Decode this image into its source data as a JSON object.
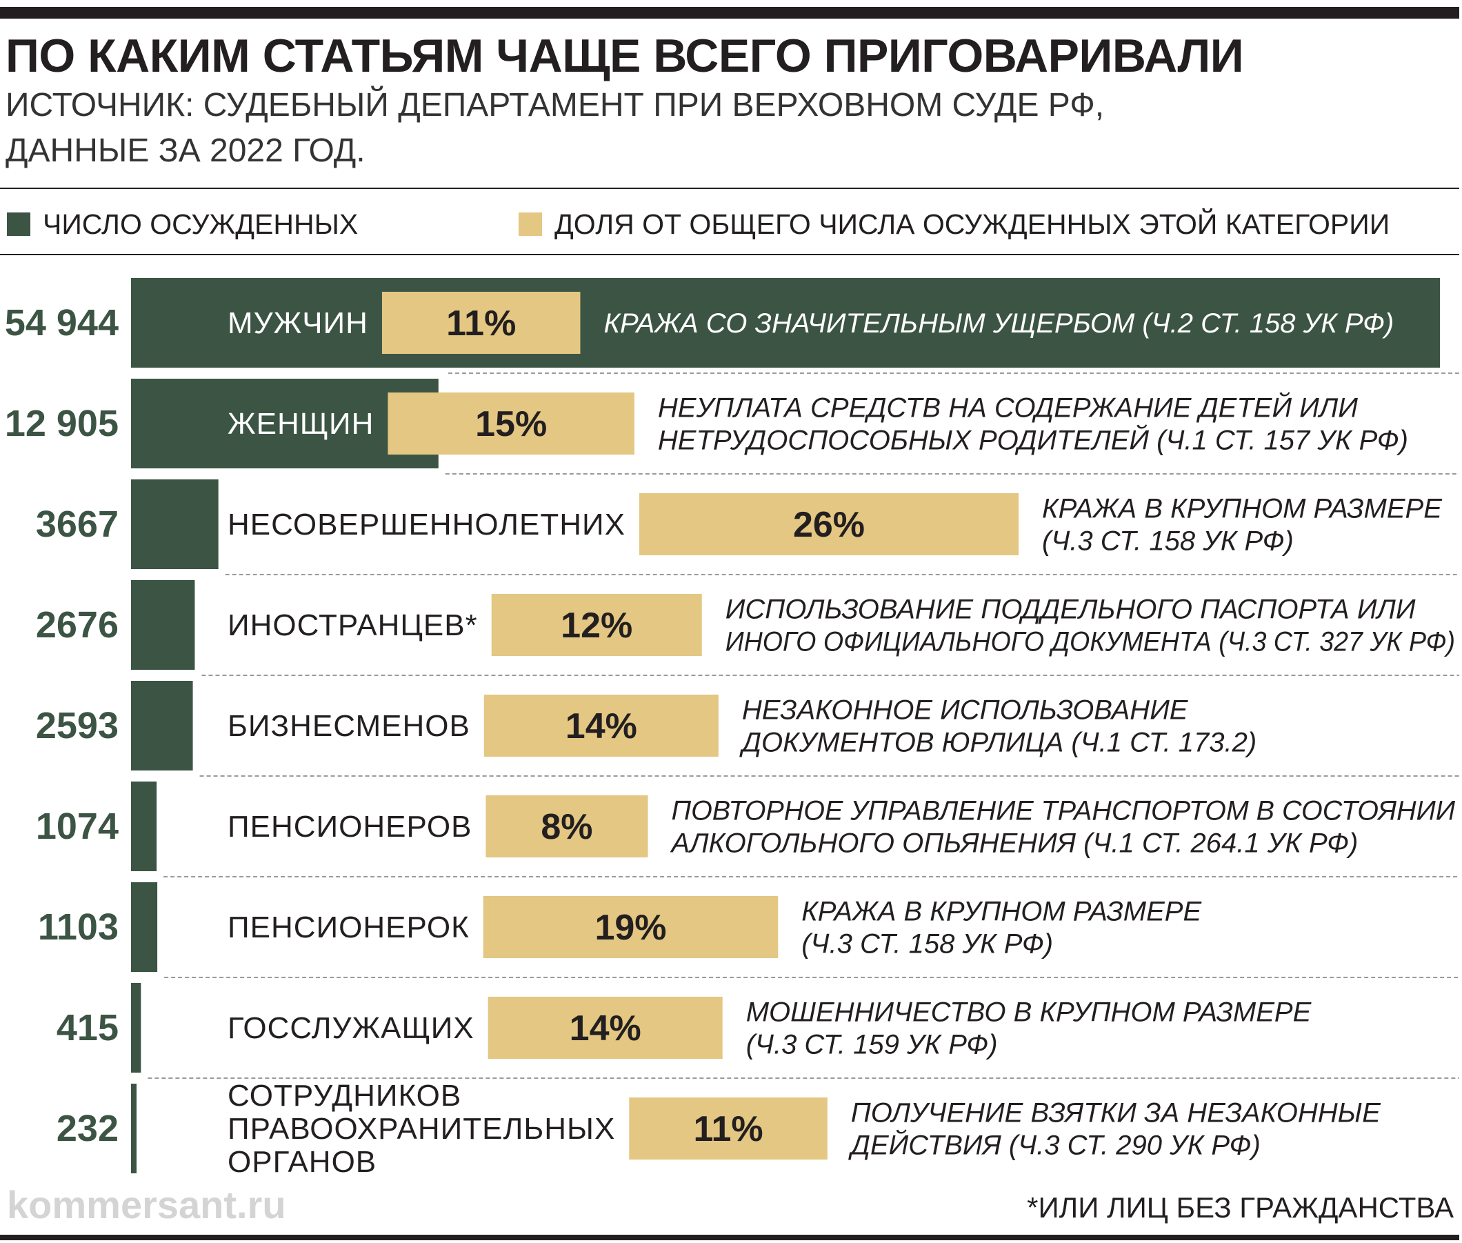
{
  "header": {
    "title": "ПО КАКИМ СТАТЬЯМ ЧАЩЕ ВСЕГО ПРИГОВАРИВАЛИ",
    "subtitle_line1": "ИСТОЧНИК: СУДЕБНЫЙ ДЕПАРТАМЕНТ ПРИ ВЕРХОВНОМ СУДЕ РФ,",
    "subtitle_line2": "ДАННЫЕ ЗА 2022 ГОД."
  },
  "legend": {
    "count_label": "ЧИСЛО ОСУЖДЕННЫХ",
    "share_label": "ДОЛЯ ОТ ОБЩЕГО ЧИСЛА ОСУЖДЕННЫХ ЭТОЙ КАТЕГОРИИ"
  },
  "colors": {
    "count_bar": "#3c5444",
    "share_bar": "#e3c782",
    "text": "#231f20",
    "count_label": "#3c5444"
  },
  "chart_data": {
    "type": "bar",
    "orientation": "horizontal",
    "legend_position": "top",
    "grid": false,
    "series": [
      {
        "name": "ЧИСЛО ОСУЖДЕННЫХ",
        "unit": "persons"
      },
      {
        "name": "ДОЛЯ ОТ ОБЩЕГО ЧИСЛА ОСУЖДЕННЫХ ЭТОЙ КАТЕГОРИИ",
        "unit": "%"
      }
    ],
    "max_count": 54944,
    "rows": [
      {
        "count": 54944,
        "count_label": "54 944",
        "category_lines": [
          "МУЖЧИН"
        ],
        "share": 11,
        "share_label": "11%",
        "article_lines": [
          "КРАЖА СО ЗНАЧИТЕЛЬНЫМ УЩЕРБОМ (Ч.2 СТ. 158 УК РФ)"
        ]
      },
      {
        "count": 12905,
        "count_label": "12 905",
        "category_lines": [
          "ЖЕНЩИН"
        ],
        "share": 15,
        "share_label": "15%",
        "article_lines": [
          "НЕУПЛАТА СРЕДСТВ НА СОДЕРЖАНИЕ ДЕТЕЙ ИЛИ",
          "НЕТРУДОСПОСОБНЫХ РОДИТЕЛЕЙ (Ч.1 СТ. 157 УК РФ)"
        ]
      },
      {
        "count": 3667,
        "count_label": "3667",
        "category_lines": [
          "НЕСОВЕРШЕННОЛЕТНИХ"
        ],
        "share": 26,
        "share_label": "26%",
        "article_lines": [
          "КРАЖА В КРУПНОМ РАЗМЕРЕ",
          "(Ч.3 СТ. 158 УК РФ)"
        ]
      },
      {
        "count": 2676,
        "count_label": "2676",
        "category_lines": [
          "ИНОСТРАНЦЕВ*"
        ],
        "share": 12,
        "share_label": "12%",
        "article_lines": [
          "ИСПОЛЬЗОВАНИЕ ПОДДЕЛЬНОГО ПАСПОРТА ИЛИ",
          "ИНОГО ОФИЦИАЛЬНОГО ДОКУМЕНТА (Ч.3 СТ. 327 УК РФ)"
        ]
      },
      {
        "count": 2593,
        "count_label": "2593",
        "category_lines": [
          "БИЗНЕСМЕНОВ"
        ],
        "share": 14,
        "share_label": "14%",
        "article_lines": [
          "НЕЗАКОННОЕ ИСПОЛЬЗОВАНИЕ",
          "ДОКУМЕНТОВ ЮРЛИЦА (Ч.1 СТ. 173.2)"
        ]
      },
      {
        "count": 1074,
        "count_label": "1074",
        "category_lines": [
          "ПЕНСИОНЕРОВ"
        ],
        "share": 8,
        "share_label": "8%",
        "article_lines": [
          "ПОВТОРНОЕ УПРАВЛЕНИЕ ТРАНСПОРТОМ В СОСТОЯНИИ",
          "АЛКОГОЛЬНОГО ОПЬЯНЕНИЯ (Ч.1 СТ. 264.1 УК РФ)"
        ]
      },
      {
        "count": 1103,
        "count_label": "1103",
        "category_lines": [
          "ПЕНСИОНЕРОК"
        ],
        "share": 19,
        "share_label": "19%",
        "article_lines": [
          "КРАЖА В КРУПНОМ РАЗМЕРЕ",
          "(Ч.3 СТ. 158 УК РФ)"
        ]
      },
      {
        "count": 415,
        "count_label": "415",
        "category_lines": [
          "ГОССЛУЖАЩИХ"
        ],
        "share": 14,
        "share_label": "14%",
        "article_lines": [
          "МОШЕННИЧЕСТВО В КРУПНОМ РАЗМЕРЕ",
          "(Ч.3 СТ. 159 УК РФ)"
        ]
      },
      {
        "count": 232,
        "count_label": "232",
        "category_lines": [
          "СОТРУДНИКОВ",
          "ПРАВООХРАНИТЕЛЬНЫХ",
          "ОРГАНОВ"
        ],
        "share": 11,
        "share_label": "11%",
        "article_lines": [
          "ПОЛУЧЕНИЕ ВЗЯТКИ ЗА НЕЗАКОННЫЕ",
          "ДЕЙСТВИЯ (Ч.3 СТ. 290 УК РФ)"
        ]
      }
    ]
  },
  "footer": {
    "watermark": "kommersant.ru",
    "footnote": "*ИЛИ ЛИЦ БЕЗ ГРАЖДАНСТВА"
  }
}
